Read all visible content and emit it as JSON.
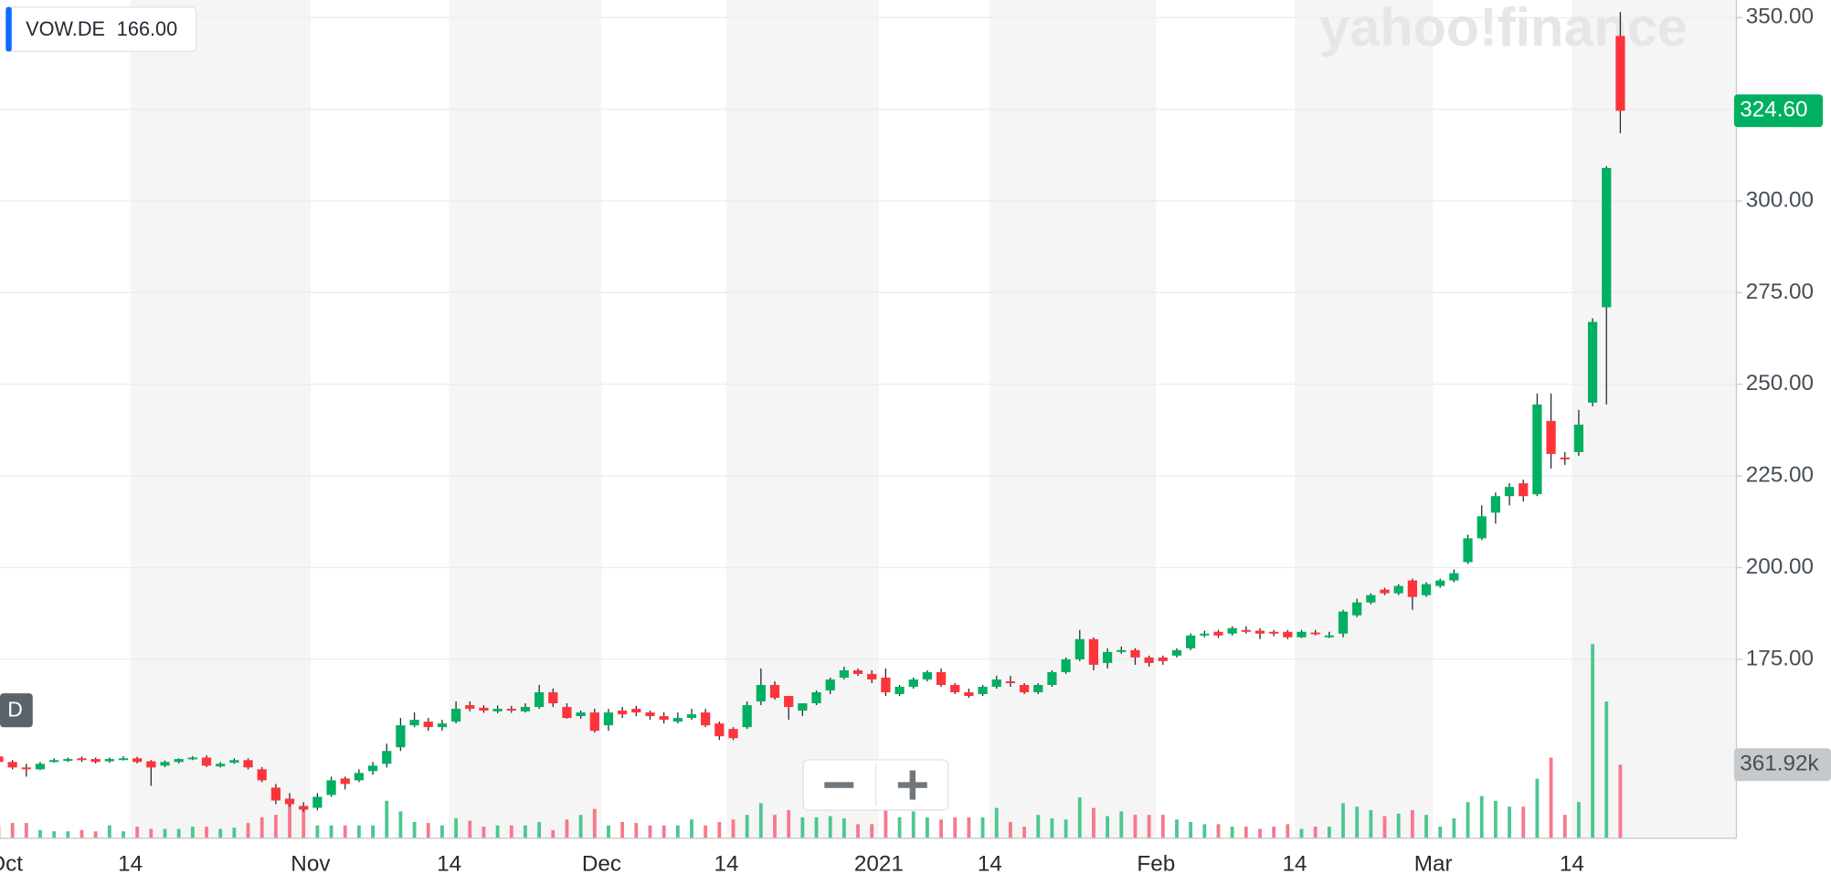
{
  "chart_data": {
    "type": "candlestick",
    "symbol": "VOW.DE",
    "symbol_price": "166.00",
    "interval_label": "D",
    "watermark": "yahoo!finance",
    "up_color": "#00b061",
    "down_color": "#ff333a",
    "volume_up_color": "#4cc790",
    "volume_down_color": "#f6798a",
    "grid": true,
    "ylim": [
      126.2,
      354.8
    ],
    "yticks": [
      {
        "value": 175,
        "label": "175.00"
      },
      {
        "value": 200,
        "label": "200.00"
      },
      {
        "value": 225,
        "label": "225.00"
      },
      {
        "value": 250,
        "label": "250.00"
      },
      {
        "value": 275,
        "label": "275.00"
      },
      {
        "value": 300,
        "label": "300.00"
      },
      {
        "value": 325,
        "label": "325.00"
      },
      {
        "value": 350,
        "label": "350.00"
      }
    ],
    "last_price": {
      "value": 324.6,
      "label": "324.60"
    },
    "last_volume": {
      "value": 361.92,
      "label": "361.92k"
    },
    "categories": [
      "Oct",
      null,
      null,
      null,
      null,
      null,
      null,
      null,
      null,
      "14",
      null,
      null,
      null,
      null,
      null,
      null,
      null,
      null,
      null,
      null,
      null,
      null,
      "Nov",
      null,
      null,
      null,
      null,
      null,
      null,
      null,
      null,
      null,
      "14",
      null,
      null,
      null,
      null,
      null,
      null,
      null,
      null,
      null,
      null,
      "Dec",
      null,
      null,
      null,
      null,
      null,
      null,
      null,
      null,
      "14",
      null,
      null,
      null,
      null,
      null,
      null,
      null,
      null,
      null,
      null,
      "2021",
      null,
      null,
      null,
      null,
      null,
      null,
      null,
      "14",
      null,
      null,
      null,
      null,
      null,
      null,
      null,
      null,
      null,
      null,
      null,
      "Feb",
      null,
      null,
      null,
      null,
      null,
      null,
      null,
      null,
      null,
      "14",
      null,
      null,
      null,
      null,
      null,
      null,
      null,
      null,
      null,
      "Mar",
      null,
      null,
      null,
      null,
      null,
      null,
      null,
      null,
      null,
      "14",
      null,
      null,
      null,
      null
    ],
    "open": [
      148.5,
      147,
      145.5,
      145,
      147,
      147.5,
      148,
      147.8,
      147.2,
      147.8,
      148,
      147.2,
      146,
      147,
      147.8,
      148.2,
      145.8,
      146.8,
      147.5,
      145,
      140,
      137,
      135,
      134.5,
      138,
      142.5,
      142,
      144.5,
      146.5,
      151,
      157,
      158,
      156.5,
      158,
      162.5,
      161.8,
      160.8,
      161.5,
      160.8,
      162,
      166,
      162,
      159.5,
      160.5,
      157,
      161,
      161.5,
      160.5,
      159.5,
      158,
      159,
      160.5,
      157.5,
      156,
      156.5,
      163.5,
      168,
      165,
      161,
      163,
      166.5,
      170,
      172,
      171,
      170,
      165.5,
      167.5,
      169.5,
      171.5,
      168,
      166,
      165.5,
      167.5,
      169,
      168,
      166,
      168,
      171.5,
      175,
      180.5,
      174,
      177,
      177.5,
      175.5,
      175.5,
      176,
      178,
      181.5,
      182.5,
      182,
      183,
      182.8,
      182.5,
      182.5,
      181,
      182.3,
      181.5,
      182,
      187,
      190.5,
      194,
      193,
      196.5,
      192.5,
      195,
      196.5,
      201.5,
      208,
      215,
      219.5,
      223,
      220,
      240,
      230,
      231.5,
      245,
      271,
      345
    ],
    "high": [
      149,
      147.5,
      146.5,
      147,
      148,
      148.2,
      148.5,
      148.2,
      148.2,
      148.6,
      148.4,
      147.5,
      147.4,
      148,
      148.6,
      148.8,
      147,
      148,
      148,
      145.6,
      141,
      138.5,
      136,
      138.5,
      143,
      143,
      145,
      147,
      152,
      159,
      160.5,
      159,
      158.5,
      163.5,
      163.5,
      162.5,
      162.4,
      162.3,
      163,
      168,
      167,
      163,
      161,
      161.5,
      161.5,
      162,
      162.3,
      161,
      160.5,
      160.5,
      161.5,
      161.5,
      158,
      156.5,
      163.5,
      172.5,
      169,
      165,
      162.5,
      166.5,
      170,
      173,
      172.5,
      172,
      172.5,
      168,
      170,
      172,
      172.5,
      168.5,
      167,
      168,
      170.5,
      170.5,
      168.5,
      168.5,
      172,
      175.5,
      183,
      181,
      178,
      178.5,
      178,
      176,
      176,
      178,
      182,
      182.8,
      183,
      184,
      184,
      183.5,
      183,
      183,
      183,
      183,
      182.5,
      188.5,
      191.5,
      193,
      194.5,
      195.5,
      197,
      196,
      197,
      199.5,
      209,
      217,
      220.5,
      223,
      224,
      247.5,
      247.5,
      231.5,
      243,
      268,
      309.5,
      351.5
    ],
    "low": [
      146.5,
      145,
      143,
      144.8,
      146.8,
      147,
      147,
      146.6,
      146.8,
      147.4,
      146.6,
      140.5,
      145.6,
      146.6,
      147.5,
      145.6,
      145.5,
      146.5,
      145,
      141.5,
      135.5,
      134.8,
      133.5,
      133.8,
      137.5,
      139.5,
      141.5,
      143.5,
      145.5,
      150,
      156.5,
      155.5,
      155.5,
      157.5,
      160.8,
      160.4,
      160.3,
      160.4,
      160.5,
      161.5,
      162,
      158.8,
      158.8,
      155,
      155.5,
      159,
      159.5,
      158.5,
      157.5,
      157.5,
      158.5,
      156.5,
      153,
      153,
      156,
      162.5,
      164,
      158.5,
      159.5,
      162.5,
      165.5,
      169.5,
      170.5,
      168.5,
      165,
      165,
      167,
      169,
      167.5,
      165.5,
      164.5,
      165,
      167,
      167.5,
      165.5,
      165.5,
      167.5,
      171,
      174.5,
      172,
      172.5,
      176.5,
      173.5,
      173,
      173.5,
      175.5,
      177.5,
      181,
      180.8,
      181.5,
      182,
      180.5,
      181.3,
      180.5,
      180.8,
      181.5,
      180.8,
      181,
      186.5,
      190,
      192.5,
      192.5,
      188.5,
      192,
      194.5,
      196,
      201,
      207.5,
      212,
      217,
      218,
      219.5,
      227,
      228,
      230.5,
      244,
      244.5,
      318.5
    ],
    "close": [
      147,
      145.5,
      145,
      146.5,
      147.5,
      147.8,
      147.5,
      147,
      147.8,
      148,
      147,
      145.5,
      147,
      147.8,
      148.2,
      146,
      146.5,
      147.5,
      145.5,
      142,
      136.5,
      135.5,
      134,
      137.5,
      142,
      141,
      144,
      146,
      150,
      157,
      158.5,
      156.5,
      157.5,
      161.5,
      161.5,
      161,
      161.5,
      161,
      162,
      166,
      163,
      159,
      160.5,
      155.5,
      160.5,
      160,
      160.5,
      159.5,
      158.5,
      159,
      160,
      157,
      154,
      153.5,
      162.5,
      168,
      164.5,
      162,
      163,
      166,
      169.5,
      172,
      171,
      169.5,
      166,
      167.5,
      169.5,
      171.5,
      168,
      166,
      165,
      167.5,
      169.5,
      168.5,
      166,
      168,
      171.5,
      175,
      180.5,
      173.5,
      177,
      177.5,
      175.5,
      174,
      174.5,
      177.5,
      181.5,
      182,
      181.5,
      183.5,
      182.5,
      182,
      182,
      181,
      182.5,
      182,
      181.5,
      188,
      190.5,
      192.5,
      193,
      195,
      192,
      195.5,
      196.5,
      198.5,
      208,
      214,
      219.5,
      222,
      219.5,
      244.5,
      231,
      229.8,
      239,
      267,
      309,
      324.6
    ],
    "volume": [
      63,
      75,
      75,
      40,
      34,
      34,
      40,
      34,
      63,
      34,
      57,
      46,
      46,
      46,
      57,
      57,
      46,
      52,
      75,
      103,
      115,
      184,
      144,
      63,
      63,
      63,
      63,
      63,
      184,
      132,
      80,
      75,
      63,
      98,
      86,
      57,
      63,
      63,
      63,
      80,
      40,
      92,
      115,
      144,
      63,
      80,
      75,
      63,
      63,
      63,
      92,
      63,
      80,
      92,
      115,
      172,
      115,
      138,
      103,
      103,
      109,
      98,
      69,
      69,
      138,
      103,
      132,
      103,
      92,
      103,
      103,
      103,
      149,
      80,
      57,
      115,
      98,
      92,
      201,
      149,
      109,
      132,
      115,
      115,
      115,
      92,
      80,
      69,
      69,
      57,
      57,
      46,
      57,
      69,
      46,
      57,
      57,
      172,
      155,
      138,
      109,
      121,
      138,
      115,
      57,
      98,
      178,
      207,
      184,
      155,
      155,
      293,
      396,
      115,
      178,
      954,
      672,
      361.92
    ]
  }
}
